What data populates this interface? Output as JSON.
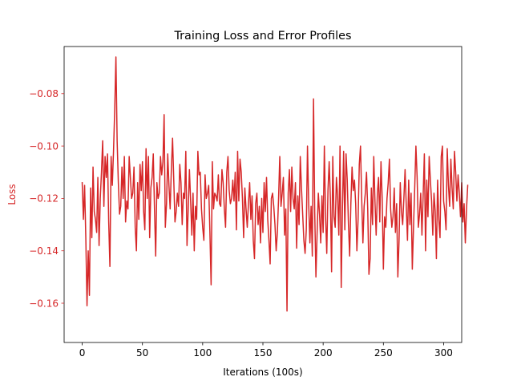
{
  "chart_data": {
    "type": "line",
    "title": "Training Loss and Error Profiles",
    "xlabel": "Iterations (100s)",
    "ylabel": "Loss",
    "xlim": [
      -15,
      315
    ],
    "ylim": [
      -0.175,
      -0.062
    ],
    "x_ticks": [
      {
        "value": 0,
        "label": "0"
      },
      {
        "value": 50,
        "label": "50"
      },
      {
        "value": 100,
        "label": "100"
      },
      {
        "value": 150,
        "label": "150"
      },
      {
        "value": 200,
        "label": "200"
      },
      {
        "value": 250,
        "label": "250"
      },
      {
        "value": 300,
        "label": "300"
      }
    ],
    "y_ticks": [
      {
        "value": -0.16,
        "label": "−0.16"
      },
      {
        "value": -0.14,
        "label": "−0.14"
      },
      {
        "value": -0.12,
        "label": "−0.12"
      },
      {
        "value": -0.1,
        "label": "−0.10"
      },
      {
        "value": -0.08,
        "label": "−0.08"
      }
    ],
    "grid": false,
    "colors": {
      "series": "#d62728",
      "ylabel": "#d62728",
      "yticks": "#d62728",
      "axes": "#000000"
    },
    "series": [
      {
        "values": [
          -0.114,
          -0.128,
          -0.115,
          -0.135,
          -0.161,
          -0.14,
          -0.157,
          -0.116,
          -0.135,
          -0.108,
          -0.125,
          -0.128,
          -0.133,
          -0.112,
          -0.138,
          -0.12,
          -0.11,
          -0.098,
          -0.123,
          -0.104,
          -0.112,
          -0.103,
          -0.129,
          -0.146,
          -0.104,
          -0.115,
          -0.102,
          -0.086,
          -0.066,
          -0.098,
          -0.114,
          -0.126,
          -0.123,
          -0.108,
          -0.12,
          -0.104,
          -0.129,
          -0.121,
          -0.124,
          -0.104,
          -0.112,
          -0.12,
          -0.118,
          -0.108,
          -0.131,
          -0.14,
          -0.114,
          -0.128,
          -0.107,
          -0.117,
          -0.106,
          -0.125,
          -0.132,
          -0.101,
          -0.12,
          -0.104,
          -0.135,
          -0.116,
          -0.112,
          -0.103,
          -0.124,
          -0.142,
          -0.114,
          -0.12,
          -0.118,
          -0.104,
          -0.111,
          -0.106,
          -0.088,
          -0.131,
          -0.122,
          -0.103,
          -0.115,
          -0.124,
          -0.109,
          -0.097,
          -0.113,
          -0.129,
          -0.125,
          -0.118,
          -0.123,
          -0.107,
          -0.114,
          -0.13,
          -0.118,
          -0.12,
          -0.102,
          -0.138,
          -0.124,
          -0.109,
          -0.121,
          -0.134,
          -0.118,
          -0.14,
          -0.123,
          -0.128,
          -0.102,
          -0.111,
          -0.11,
          -0.124,
          -0.131,
          -0.136,
          -0.111,
          -0.12,
          -0.118,
          -0.115,
          -0.133,
          -0.153,
          -0.106,
          -0.124,
          -0.118,
          -0.119,
          -0.121,
          -0.111,
          -0.122,
          -0.123,
          -0.109,
          -0.114,
          -0.124,
          -0.131,
          -0.11,
          -0.104,
          -0.117,
          -0.122,
          -0.12,
          -0.113,
          -0.121,
          -0.11,
          -0.132,
          -0.102,
          -0.121,
          -0.105,
          -0.11,
          -0.12,
          -0.135,
          -0.116,
          -0.124,
          -0.131,
          -0.122,
          -0.114,
          -0.128,
          -0.119,
          -0.136,
          -0.143,
          -0.122,
          -0.118,
          -0.13,
          -0.123,
          -0.137,
          -0.12,
          -0.133,
          -0.114,
          -0.125,
          -0.112,
          -0.128,
          -0.136,
          -0.145,
          -0.12,
          -0.118,
          -0.123,
          -0.13,
          -0.14,
          -0.133,
          -0.12,
          -0.104,
          -0.123,
          -0.118,
          -0.112,
          -0.134,
          -0.124,
          -0.163,
          -0.118,
          -0.109,
          -0.125,
          -0.108,
          -0.12,
          -0.124,
          -0.114,
          -0.139,
          -0.119,
          -0.13,
          -0.104,
          -0.116,
          -0.126,
          -0.136,
          -0.141,
          -0.132,
          -0.1,
          -0.122,
          -0.137,
          -0.123,
          -0.142,
          -0.082,
          -0.125,
          -0.15,
          -0.133,
          -0.118,
          -0.126,
          -0.137,
          -0.119,
          -0.133,
          -0.1,
          -0.127,
          -0.141,
          -0.117,
          -0.106,
          -0.12,
          -0.148,
          -0.104,
          -0.127,
          -0.131,
          -0.112,
          -0.119,
          -0.134,
          -0.1,
          -0.154,
          -0.124,
          -0.102,
          -0.132,
          -0.103,
          -0.113,
          -0.13,
          -0.142,
          -0.122,
          -0.108,
          -0.117,
          -0.113,
          -0.122,
          -0.14,
          -0.128,
          -0.107,
          -0.1,
          -0.12,
          -0.137,
          -0.123,
          -0.118,
          -0.11,
          -0.124,
          -0.149,
          -0.143,
          -0.116,
          -0.13,
          -0.104,
          -0.121,
          -0.134,
          -0.118,
          -0.112,
          -0.129,
          -0.106,
          -0.12,
          -0.147,
          -0.127,
          -0.131,
          -0.12,
          -0.114,
          -0.105,
          -0.124,
          -0.131,
          -0.127,
          -0.116,
          -0.133,
          -0.122,
          -0.15,
          -0.136,
          -0.114,
          -0.125,
          -0.13,
          -0.12,
          -0.109,
          -0.123,
          -0.136,
          -0.113,
          -0.13,
          -0.118,
          -0.147,
          -0.131,
          -0.116,
          -0.1,
          -0.112,
          -0.131,
          -0.126,
          -0.118,
          -0.134,
          -0.119,
          -0.103,
          -0.14,
          -0.113,
          -0.127,
          -0.104,
          -0.113,
          -0.121,
          -0.134,
          -0.118,
          -0.125,
          -0.143,
          -0.113,
          -0.128,
          -0.135,
          -0.104,
          -0.1,
          -0.121,
          -0.125,
          -0.132,
          -0.101,
          -0.115,
          -0.123,
          -0.105,
          -0.116,
          -0.124,
          -0.102,
          -0.11,
          -0.121,
          -0.111,
          -0.118,
          -0.127,
          -0.114,
          -0.129,
          -0.122,
          -0.137,
          -0.124,
          -0.115
        ]
      }
    ]
  }
}
